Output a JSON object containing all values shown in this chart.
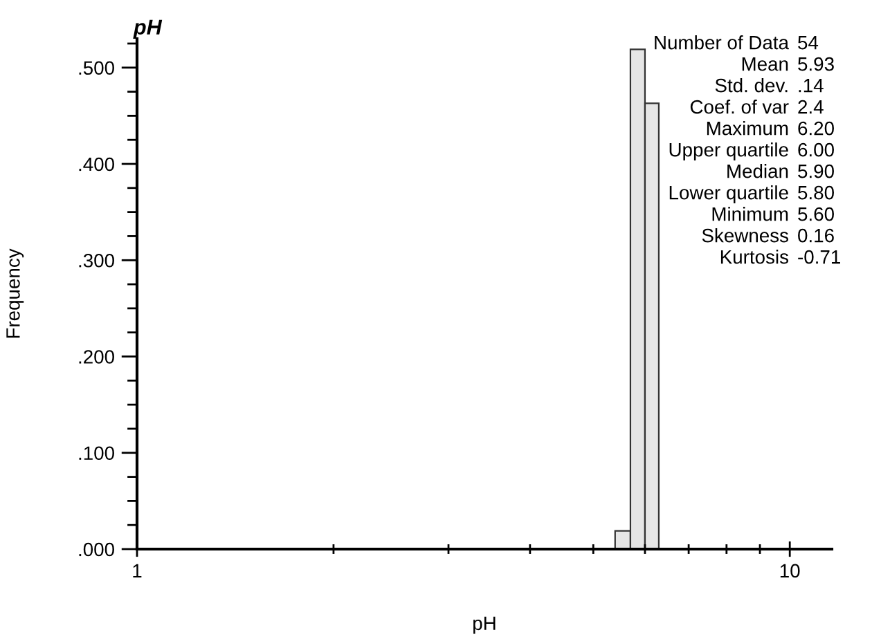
{
  "chart_data": {
    "type": "histogram",
    "title": "pH",
    "xlabel": "pH",
    "ylabel": "Frequency",
    "bins": [
      5.4,
      5.7,
      6.0,
      6.3
    ],
    "values": [
      0.019,
      0.519,
      0.463
    ],
    "color": "#e6e6e6",
    "log": "x",
    "xlim": [
      1,
      11.6
    ],
    "xticks": [
      1,
      10
    ],
    "ylim": [
      0,
      0.53
    ],
    "yticks": [
      {
        "value": 0,
        "label": ".000"
      },
      {
        "value": 0.1,
        "label": ".100"
      },
      {
        "value": 0.2,
        "label": ".200"
      },
      {
        "value": 0.3,
        "label": ".300"
      },
      {
        "value": 0.4,
        "label": ".400"
      },
      {
        "value": 0.5,
        "label": ".500"
      }
    ],
    "grid": false,
    "legend": false,
    "annotations": [
      "Number of Data",
      "54",
      "Mean",
      "5.93",
      "Std. dev.",
      ".14",
      "Coef. of var",
      "2.4",
      "Maximum",
      "6.20",
      "Upper quartile",
      "6.00",
      "Median",
      "5.90",
      "Lower quartile",
      "5.80",
      "Minimum",
      "5.60",
      "Skewness",
      "0.16",
      "Kurtosis",
      "-0.71"
    ]
  }
}
